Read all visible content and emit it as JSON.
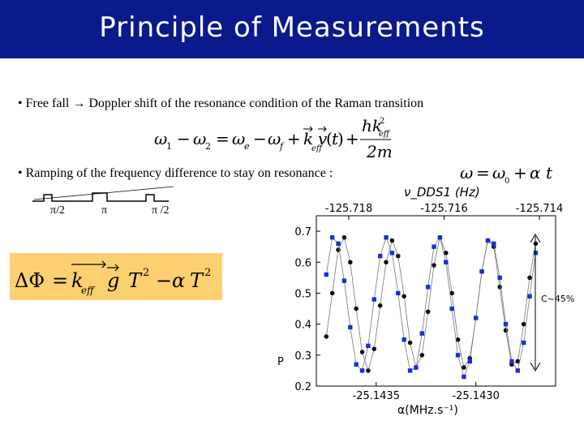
{
  "slide": {
    "title": "Principle of Measurements",
    "bullet1": "• Free fall → Doppler shift of the resonance condition of the Raman transition",
    "bullet2": "• Ramping of the frequency difference to stay on resonance :",
    "pulses": {
      "label1": "π/2",
      "label2": "π",
      "label3": "π /2"
    },
    "contrast_label": "C~45%"
  },
  "equations": {
    "doppler": "ω1 − ω2 = ωe − ωf + k_eff · v(t) + h k_eff² / 2m",
    "ramp": "ω = ω0 + α t",
    "phase": "ΔΦ = k_eff · g T² − α T²"
  },
  "colors": {
    "title_bg": "#0a1a8c",
    "title_text": "#ffffff",
    "phase_box": "#fcd070",
    "series_black": "#111111",
    "series_blue": "#1a2fd6"
  },
  "chart_data": {
    "type": "scatter",
    "top_axis_label": "ν_DDS1 (Hz)",
    "top_ticks": [
      "-125.718",
      "-125.716",
      "-125.714"
    ],
    "bottom_ticks": [
      "-25.1435",
      "-25.1430"
    ],
    "xlabel": "α(MHz.s⁻¹)",
    "ylabel": "P",
    "xlim": [
      -25.1438,
      -25.1426
    ],
    "ylim": [
      0.2,
      0.75
    ],
    "y_ticks": [
      "0.2",
      "0.3",
      "0.4",
      "0.5",
      "0.6",
      "0.7"
    ],
    "grid": false,
    "series": [
      {
        "color": "#111111",
        "marker": "circle",
        "x": [
          -25.14375,
          -25.14372,
          -25.14369,
          -25.14366,
          -25.14363,
          -25.1436,
          -25.14357,
          -25.14354,
          -25.14351,
          -25.14348,
          -25.14345,
          -25.14342,
          -25.14339,
          -25.14336,
          -25.14333,
          -25.1433,
          -25.14327,
          -25.14324,
          -25.14321,
          -25.14318,
          -25.14315,
          -25.14312,
          -25.14309,
          -25.14306,
          -25.14303,
          -25.143,
          -25.14297,
          -25.14294,
          -25.14291,
          -25.14288,
          -25.14285,
          -25.14282,
          -25.14279,
          -25.14276,
          -25.14273,
          -25.1427
        ],
        "y": [
          0.36,
          0.5,
          0.64,
          0.68,
          0.6,
          0.45,
          0.31,
          0.25,
          0.32,
          0.46,
          0.6,
          0.67,
          0.62,
          0.49,
          0.34,
          0.26,
          0.3,
          0.44,
          0.59,
          0.68,
          0.63,
          0.5,
          0.35,
          0.26,
          0.29,
          0.42,
          0.57,
          0.67,
          0.65,
          0.52,
          0.38,
          0.27,
          0.28,
          0.4,
          0.55,
          0.66
        ]
      },
      {
        "color": "#1a2fd6",
        "marker": "square",
        "x": [
          -25.14375,
          -25.14372,
          -25.14369,
          -25.14366,
          -25.14363,
          -25.1436,
          -25.14357,
          -25.14354,
          -25.14351,
          -25.14348,
          -25.14345,
          -25.14342,
          -25.14339,
          -25.14336,
          -25.14333,
          -25.1433,
          -25.14327,
          -25.14324,
          -25.14321,
          -25.14318,
          -25.14315,
          -25.14312,
          -25.14309,
          -25.14306,
          -25.14303,
          -25.143,
          -25.14297,
          -25.14294,
          -25.14291,
          -25.14288,
          -25.14285,
          -25.14282,
          -25.14279,
          -25.14276,
          -25.14273,
          -25.1427
        ],
        "y": [
          0.56,
          0.68,
          0.66,
          0.54,
          0.39,
          0.27,
          0.25,
          0.33,
          0.48,
          0.62,
          0.68,
          0.63,
          0.5,
          0.35,
          0.25,
          0.26,
          0.37,
          0.52,
          0.65,
          0.68,
          0.6,
          0.45,
          0.3,
          0.23,
          0.28,
          0.42,
          0.57,
          0.67,
          0.66,
          0.55,
          0.4,
          0.28,
          0.25,
          0.34,
          0.49,
          0.63
        ]
      }
    ]
  }
}
